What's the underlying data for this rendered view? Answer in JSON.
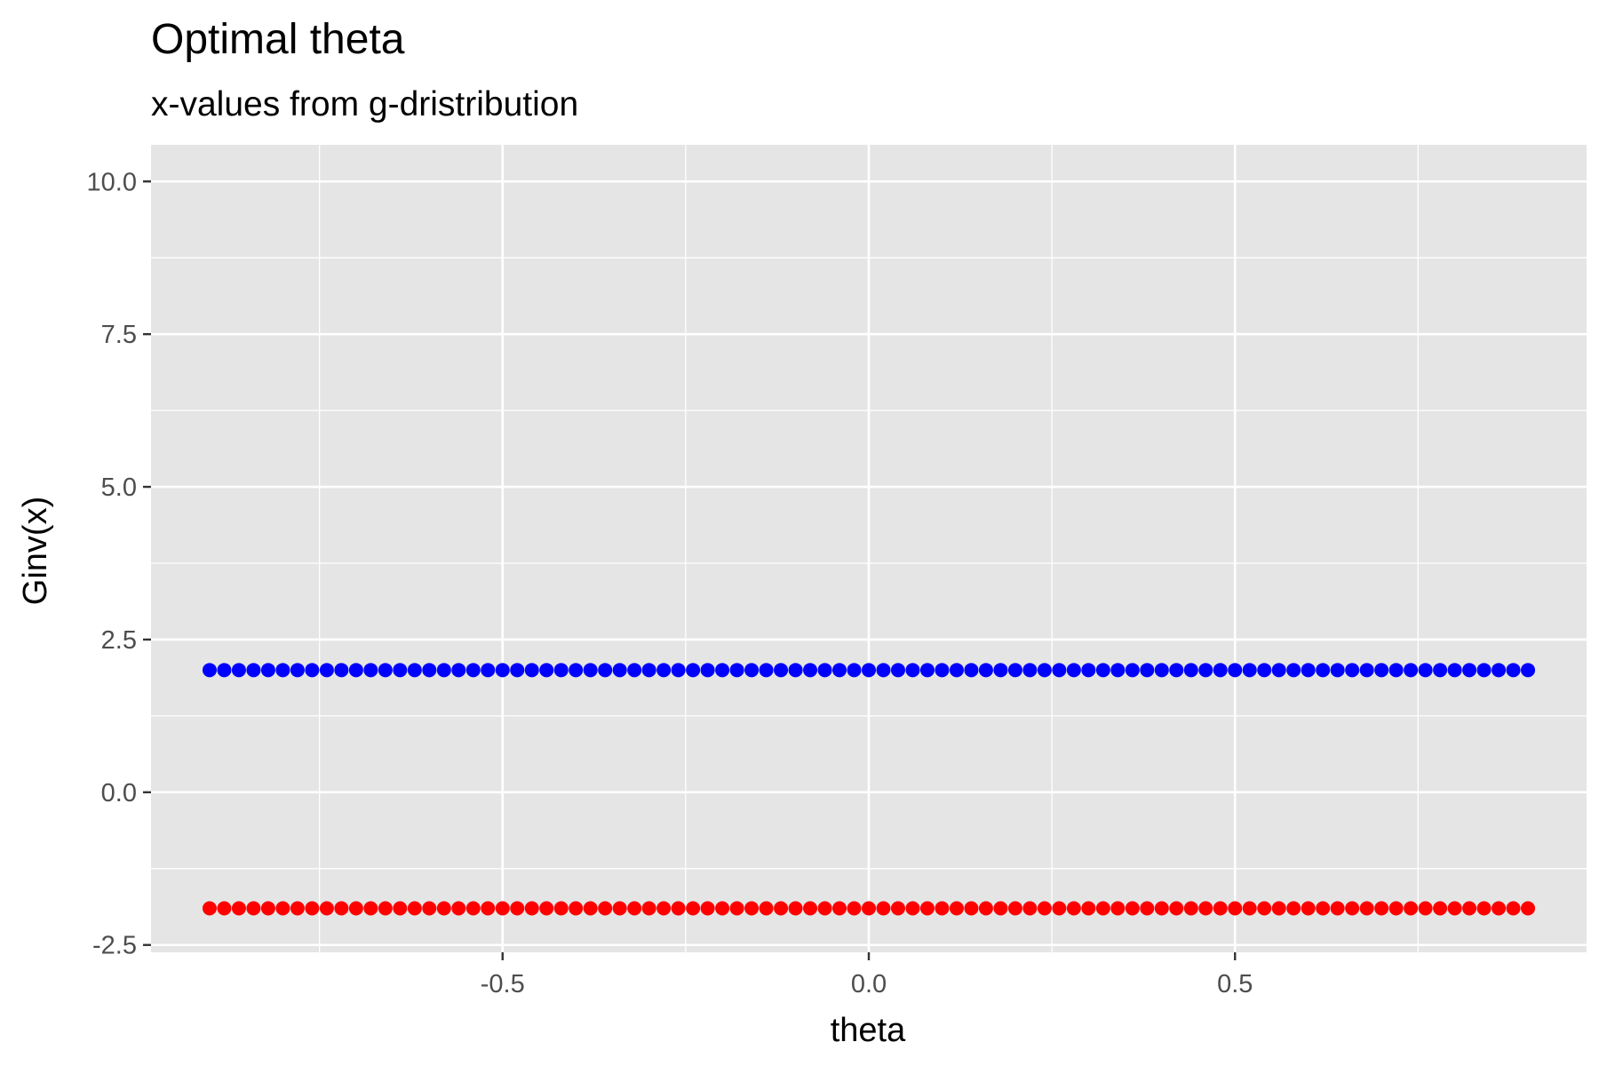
{
  "chart_data": {
    "type": "scatter",
    "title": "Optimal theta",
    "subtitle": "x-values from g-dristribution",
    "xlabel": "theta",
    "ylabel": "Ginv(x)",
    "xlim": [
      -0.98,
      0.98
    ],
    "ylim": [
      -2.62,
      10.6
    ],
    "x_ticks": [
      -0.5,
      0.0,
      0.5
    ],
    "x_tick_labels": [
      "-0.5",
      "0.0",
      "0.5"
    ],
    "y_ticks": [
      -2.5,
      0.0,
      2.5,
      5.0,
      7.5,
      10.0
    ],
    "y_tick_labels": [
      "-2.5",
      "0.0",
      "2.5",
      "5.0",
      "7.5",
      "10.0"
    ],
    "x_range": [
      -0.9,
      0.9
    ],
    "point_count": 91,
    "grid": true,
    "legend": "none",
    "series": [
      {
        "color": "#0000ff",
        "y": 2.0
      },
      {
        "color": "#ff0000",
        "y": -1.9
      }
    ],
    "panel_background": "#e5e5e5",
    "grid_color": "#ffffff"
  }
}
